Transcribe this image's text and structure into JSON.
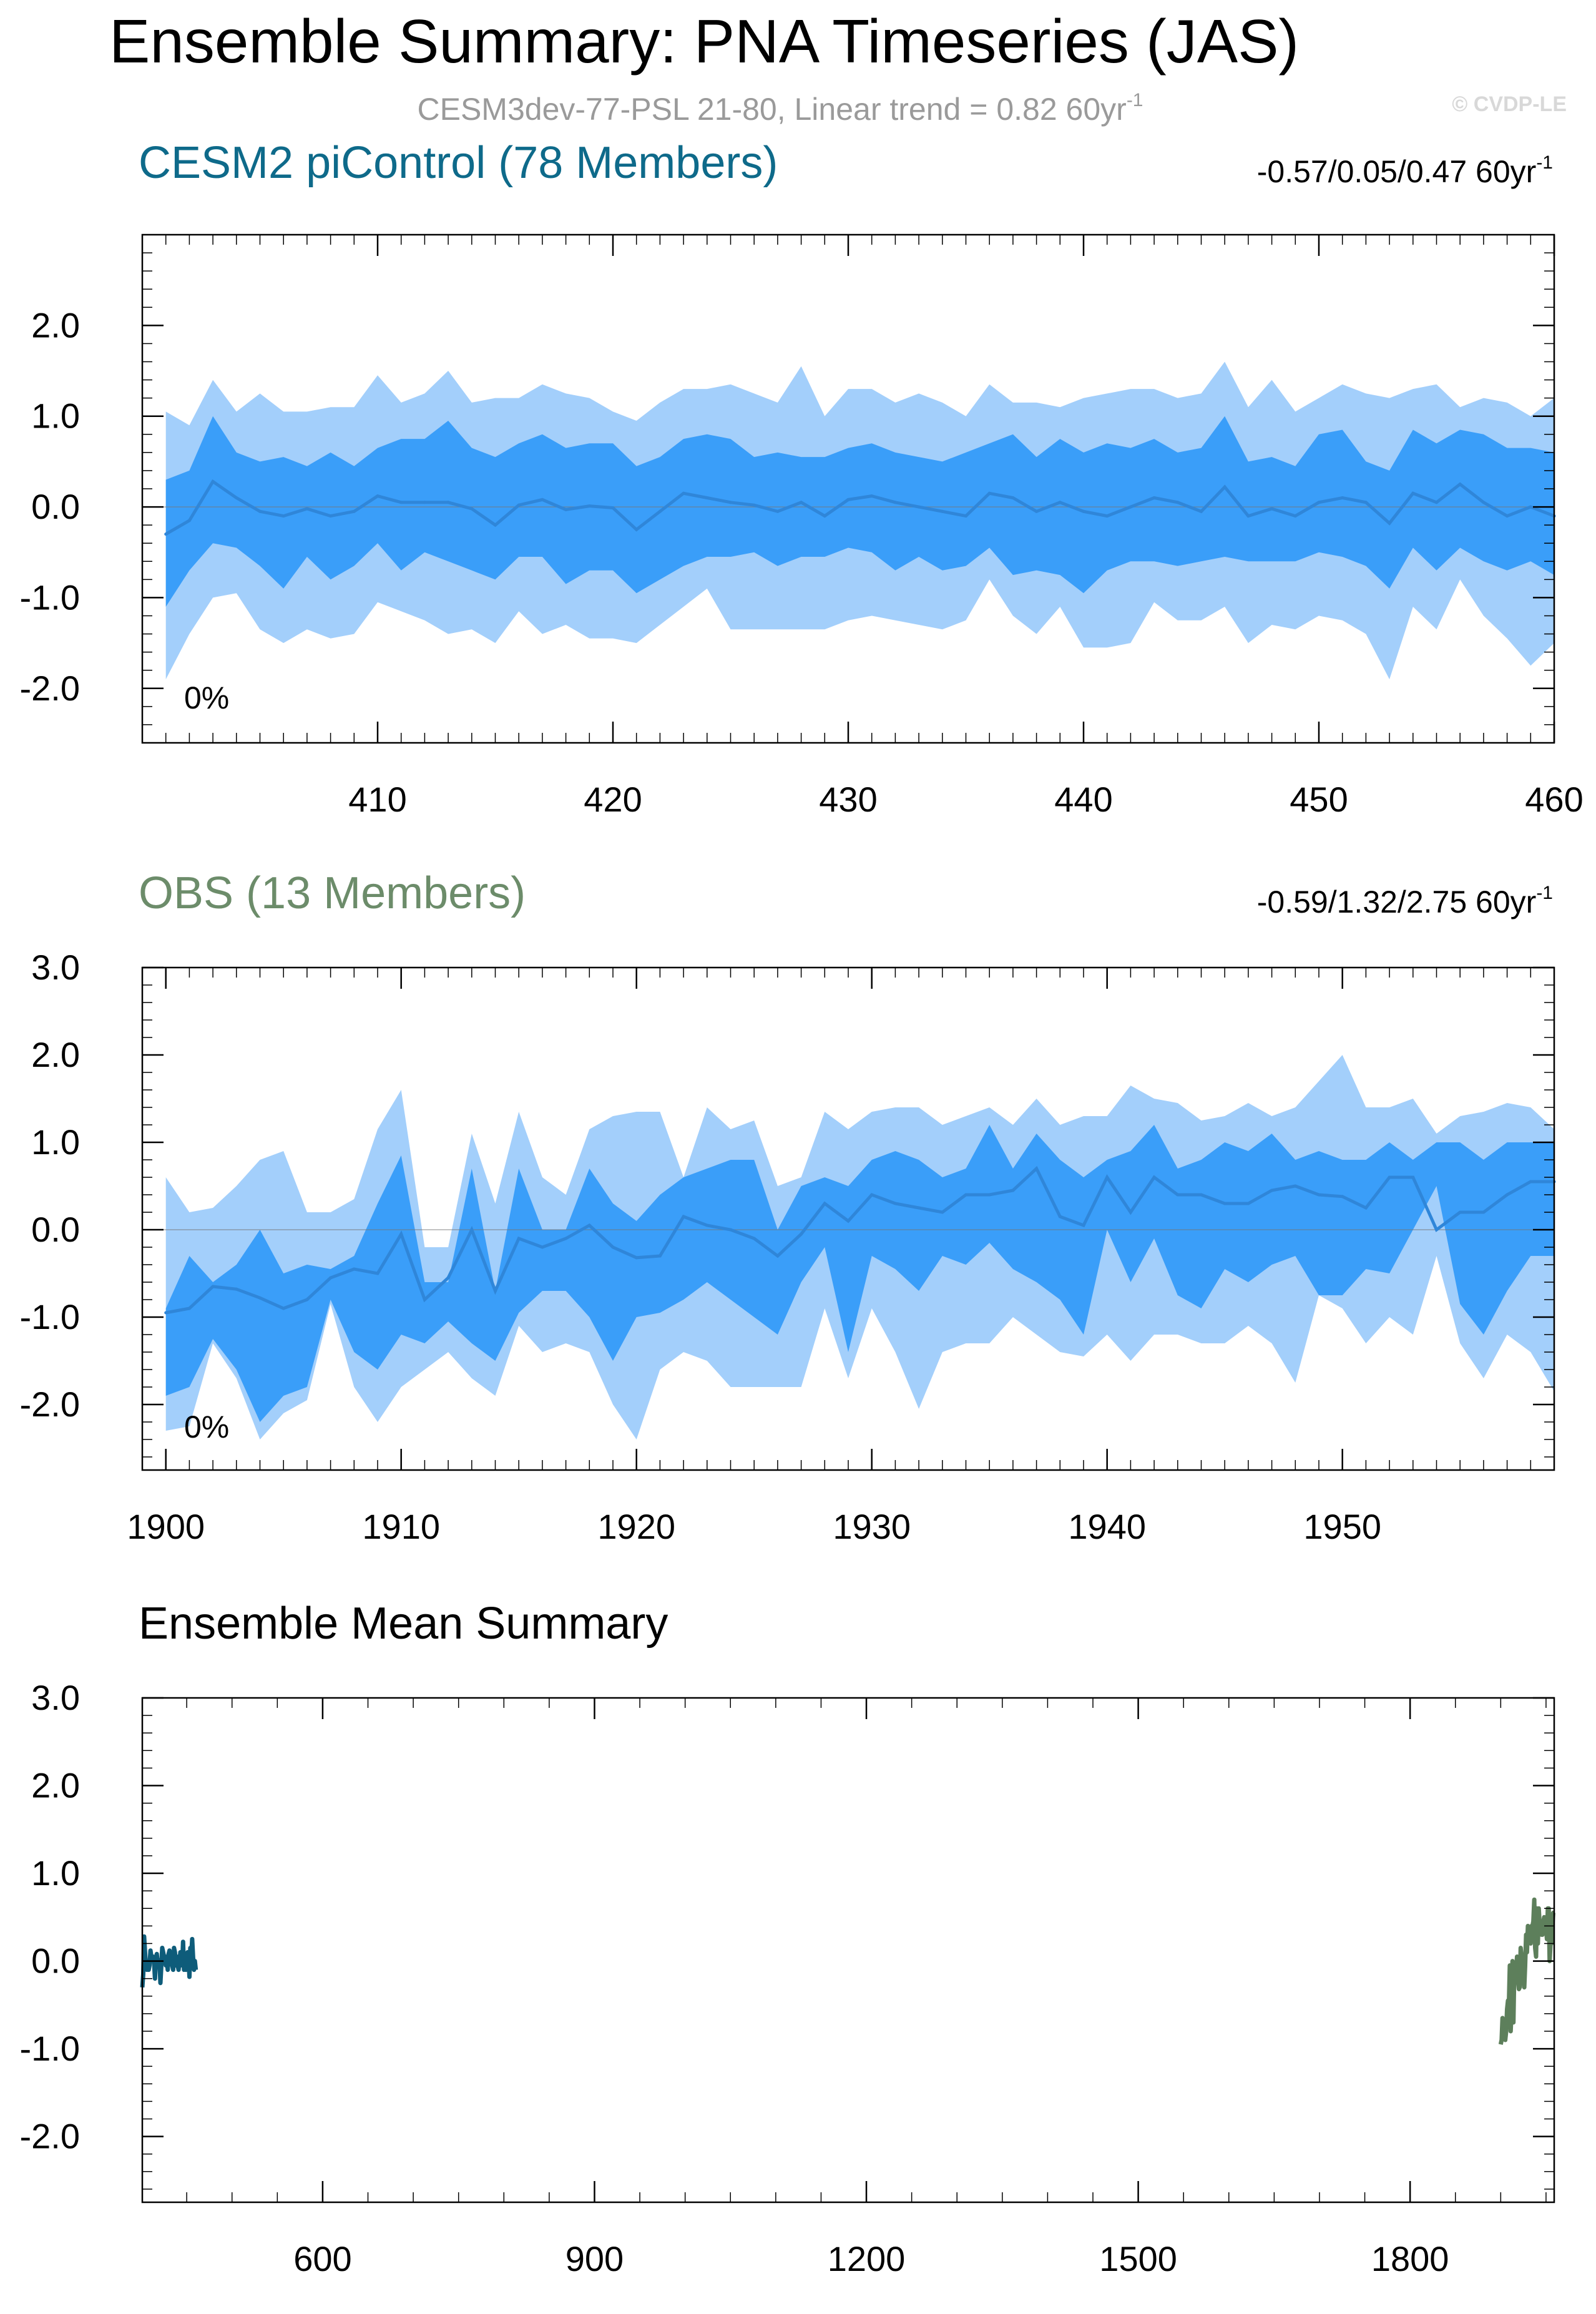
{
  "title": "Ensemble Summary: PNA Timeseries (JAS)",
  "subtitle": "CESM3dev-77-PSL 21-80, Linear trend = 0.82 60yr",
  "subtitle_sup": "-1",
  "watermark": "© CVDP-LE",
  "colors": {
    "outer_band": "#a3cffb",
    "inner_band": "#3a9ef9",
    "mean_line": "#2f86d9",
    "cesm_title": "#0e6a8a",
    "obs_title": "#6c8c6a",
    "cesm_line": "#0e5c7a",
    "obs_line": "#5d7f5b",
    "subtitle": "#9a9a9a",
    "watermark": "#d8d8d8"
  },
  "panels": [
    {
      "title": "CESM2 piControl (78 Members)",
      "trend_label": "-0.57/0.05/0.47 60yr",
      "trend_sup": "-1",
      "percent_label": "0%",
      "xticks": [
        "410",
        "420",
        "430",
        "440",
        "450",
        "460"
      ],
      "yticks": [
        "2.0",
        "1.0",
        "0.0",
        "-1.0",
        "-2.0"
      ]
    },
    {
      "title": "OBS (13 Members)",
      "trend_label": "-0.59/1.32/2.75 60yr",
      "trend_sup": "-1",
      "percent_label": "0%",
      "xticks": [
        "1900",
        "1910",
        "1920",
        "1930",
        "1940",
        "1950"
      ],
      "yticks": [
        "3.0",
        "2.0",
        "1.0",
        "0.0",
        "-1.0",
        "-2.0"
      ]
    },
    {
      "title": "Ensemble Mean Summary",
      "xticks": [
        "600",
        "900",
        "1200",
        "1500",
        "1800"
      ],
      "yticks": [
        "3.0",
        "2.0",
        "1.0",
        "0.0",
        "-1.0",
        "-2.0"
      ]
    }
  ],
  "chart_data": [
    {
      "type": "area",
      "title": "CESM2 piControl (78 Members)",
      "x_start": 401,
      "xlim": [
        400,
        460
      ],
      "ylim": [
        -2.6,
        3.0
      ],
      "grid": false,
      "series": [
        {
          "name": "min",
          "values": [
            -1.9,
            -1.4,
            -1.0,
            -0.95,
            -1.35,
            -1.5,
            -1.35,
            -1.45,
            -1.4,
            -1.05,
            -1.15,
            -1.25,
            -1.4,
            -1.35,
            -1.5,
            -1.15,
            -1.4,
            -1.3,
            -1.45,
            -1.45,
            -1.5,
            -1.3,
            -1.1,
            -0.9,
            -1.35,
            -1.35,
            -1.35,
            -1.35,
            -1.35,
            -1.25,
            -1.2,
            -1.25,
            -1.3,
            -1.35,
            -1.25,
            -0.8,
            -1.2,
            -1.4,
            -1.1,
            -1.55,
            -1.55,
            -1.5,
            -1.05,
            -1.25,
            -1.25,
            -1.1,
            -1.5,
            -1.3,
            -1.35,
            -1.2,
            -1.25,
            -1.4,
            -1.9,
            -1.1,
            -1.35,
            -0.8,
            -1.2,
            -1.45,
            -1.75,
            -1.5
          ]
        },
        {
          "name": "p10",
          "values": [
            -1.1,
            -0.7,
            -0.4,
            -0.45,
            -0.65,
            -0.9,
            -0.55,
            -0.8,
            -0.65,
            -0.4,
            -0.7,
            -0.5,
            -0.6,
            -0.7,
            -0.8,
            -0.55,
            -0.55,
            -0.85,
            -0.7,
            -0.7,
            -0.95,
            -0.8,
            -0.65,
            -0.55,
            -0.55,
            -0.5,
            -0.65,
            -0.55,
            -0.55,
            -0.45,
            -0.5,
            -0.7,
            -0.55,
            -0.7,
            -0.65,
            -0.45,
            -0.75,
            -0.7,
            -0.75,
            -0.95,
            -0.7,
            -0.6,
            -0.6,
            -0.65,
            -0.6,
            -0.55,
            -0.6,
            -0.6,
            -0.6,
            -0.5,
            -0.55,
            -0.65,
            -0.9,
            -0.45,
            -0.7,
            -0.45,
            -0.6,
            -0.7,
            -0.6,
            -0.75
          ]
        },
        {
          "name": "mean",
          "values": [
            -0.3,
            -0.15,
            0.28,
            0.1,
            -0.05,
            -0.1,
            -0.02,
            -0.1,
            -0.05,
            0.12,
            0.05,
            0.05,
            0.05,
            -0.02,
            -0.2,
            0.02,
            0.08,
            -0.03,
            0.01,
            -0.01,
            -0.25,
            -0.05,
            0.15,
            0.1,
            0.05,
            0.02,
            -0.05,
            0.05,
            -0.1,
            0.08,
            0.12,
            0.05,
            0.0,
            -0.05,
            -0.1,
            0.15,
            0.1,
            -0.05,
            0.05,
            -0.05,
            -0.1,
            0.0,
            0.1,
            0.05,
            -0.05,
            0.22,
            -0.1,
            -0.02,
            -0.1,
            0.05,
            0.1,
            0.05,
            -0.18,
            0.15,
            0.05,
            0.25,
            0.05,
            -0.1,
            0.0,
            -0.1
          ]
        },
        {
          "name": "p90",
          "values": [
            0.3,
            0.4,
            1.0,
            0.6,
            0.5,
            0.55,
            0.45,
            0.6,
            0.45,
            0.65,
            0.75,
            0.75,
            0.95,
            0.65,
            0.55,
            0.7,
            0.8,
            0.65,
            0.7,
            0.7,
            0.45,
            0.55,
            0.75,
            0.8,
            0.75,
            0.55,
            0.6,
            0.55,
            0.55,
            0.65,
            0.7,
            0.6,
            0.55,
            0.5,
            0.6,
            0.7,
            0.8,
            0.55,
            0.75,
            0.6,
            0.7,
            0.65,
            0.75,
            0.6,
            0.65,
            1.0,
            0.5,
            0.55,
            0.45,
            0.8,
            0.85,
            0.5,
            0.4,
            0.85,
            0.7,
            0.85,
            0.8,
            0.65,
            0.65,
            0.6
          ]
        },
        {
          "name": "max",
          "values": [
            1.05,
            0.9,
            1.4,
            1.05,
            1.25,
            1.05,
            1.05,
            1.1,
            1.1,
            1.45,
            1.15,
            1.25,
            1.5,
            1.15,
            1.2,
            1.2,
            1.35,
            1.25,
            1.2,
            1.05,
            0.95,
            1.15,
            1.3,
            1.3,
            1.35,
            1.25,
            1.15,
            1.55,
            1.0,
            1.3,
            1.3,
            1.15,
            1.25,
            1.15,
            1.0,
            1.35,
            1.15,
            1.15,
            1.1,
            1.2,
            1.25,
            1.3,
            1.3,
            1.2,
            1.25,
            1.6,
            1.1,
            1.4,
            1.05,
            1.2,
            1.35,
            1.25,
            1.2,
            1.3,
            1.35,
            1.1,
            1.2,
            1.15,
            1.0,
            1.2
          ]
        }
      ]
    },
    {
      "type": "area",
      "title": "OBS (13 Members)",
      "x_start": 1900,
      "xlim": [
        1899,
        1959
      ],
      "ylim": [
        -2.75,
        3.0
      ],
      "grid": false,
      "series": [
        {
          "name": "min",
          "values": [
            -2.3,
            -2.25,
            -1.3,
            -1.7,
            -2.4,
            -2.1,
            -1.95,
            -0.85,
            -1.8,
            -2.2,
            -1.8,
            -1.6,
            -1.4,
            -1.7,
            -1.9,
            -1.1,
            -1.4,
            -1.3,
            -1.4,
            -2.0,
            -2.4,
            -1.6,
            -1.4,
            -1.5,
            -1.8,
            -1.8,
            -1.8,
            -1.8,
            -0.9,
            -1.7,
            -0.9,
            -1.4,
            -2.05,
            -1.4,
            -1.3,
            -1.3,
            -1.0,
            -1.2,
            -1.4,
            -1.45,
            -1.2,
            -1.5,
            -1.2,
            -1.2,
            -1.3,
            -1.3,
            -1.1,
            -1.3,
            -1.75,
            -0.75,
            -0.9,
            -1.3,
            -1.0,
            -1.2,
            -0.3,
            -1.3,
            -1.7,
            -1.2,
            -1.4,
            -1.85
          ]
        },
        {
          "name": "p10",
          "values": [
            -1.9,
            -1.8,
            -1.25,
            -1.6,
            -2.2,
            -1.9,
            -1.8,
            -0.8,
            -1.4,
            -1.6,
            -1.2,
            -1.3,
            -1.05,
            -1.3,
            -1.5,
            -0.95,
            -0.7,
            -0.7,
            -1.0,
            -1.5,
            -1.0,
            -0.95,
            -0.8,
            -0.6,
            -0.8,
            -1.0,
            -1.2,
            -0.6,
            -0.2,
            -1.4,
            -0.3,
            -0.45,
            -0.7,
            -0.3,
            -0.4,
            -0.15,
            -0.45,
            -0.6,
            -0.8,
            -1.2,
            0.0,
            -0.6,
            -0.1,
            -0.75,
            -0.9,
            -0.45,
            -0.6,
            -0.4,
            -0.3,
            -0.75,
            -0.75,
            -0.45,
            -0.5,
            0.0,
            0.5,
            -0.85,
            -1.2,
            -0.7,
            -0.3,
            -0.3
          ]
        },
        {
          "name": "mean",
          "values": [
            -0.95,
            -0.9,
            -0.65,
            -0.68,
            -0.78,
            -0.9,
            -0.8,
            -0.55,
            -0.45,
            -0.5,
            -0.05,
            -0.8,
            -0.55,
            0.0,
            -0.7,
            -0.1,
            -0.2,
            -0.1,
            0.05,
            -0.2,
            -0.32,
            -0.3,
            0.15,
            0.05,
            0.0,
            -0.1,
            -0.3,
            -0.05,
            0.3,
            0.1,
            0.4,
            0.3,
            0.25,
            0.2,
            0.4,
            0.4,
            0.45,
            0.7,
            0.15,
            0.05,
            0.6,
            0.2,
            0.6,
            0.4,
            0.4,
            0.3,
            0.3,
            0.45,
            0.5,
            0.4,
            0.38,
            0.25,
            0.6,
            0.6,
            0.0,
            0.2,
            0.2,
            0.4,
            0.55,
            0.55
          ]
        },
        {
          "name": "p90",
          "values": [
            -0.9,
            -0.3,
            -0.6,
            -0.4,
            0.0,
            -0.5,
            -0.4,
            -0.45,
            -0.3,
            0.3,
            0.85,
            -0.6,
            -0.6,
            0.7,
            -0.7,
            0.7,
            0.0,
            0.0,
            0.7,
            0.3,
            0.1,
            0.4,
            0.6,
            0.7,
            0.8,
            0.8,
            0.0,
            0.5,
            0.6,
            0.5,
            0.8,
            0.9,
            0.8,
            0.6,
            0.7,
            1.2,
            0.7,
            1.1,
            0.8,
            0.6,
            0.8,
            0.9,
            1.2,
            0.7,
            0.8,
            1.0,
            0.9,
            1.1,
            0.8,
            0.9,
            0.8,
            0.8,
            1.0,
            0.8,
            1.0,
            1.0,
            0.8,
            1.0,
            1.0,
            1.0
          ]
        },
        {
          "name": "max",
          "values": [
            0.6,
            0.2,
            0.25,
            0.5,
            0.8,
            0.9,
            0.2,
            0.2,
            0.35,
            1.15,
            1.6,
            -0.2,
            -0.2,
            1.1,
            0.3,
            1.35,
            0.6,
            0.4,
            1.15,
            1.3,
            1.35,
            1.35,
            0.6,
            1.4,
            1.15,
            1.25,
            0.5,
            0.6,
            1.35,
            1.15,
            1.35,
            1.4,
            1.4,
            1.2,
            1.3,
            1.4,
            1.2,
            1.5,
            1.2,
            1.3,
            1.3,
            1.65,
            1.5,
            1.45,
            1.25,
            1.3,
            1.45,
            1.3,
            1.4,
            1.7,
            2.0,
            1.4,
            1.4,
            1.5,
            1.1,
            1.3,
            1.35,
            1.45,
            1.4,
            1.15
          ]
        }
      ]
    },
    {
      "type": "line",
      "title": "Ensemble Mean Summary",
      "xlim": [
        401,
        1959
      ],
      "ylim": [
        -2.75,
        3.0
      ],
      "grid": false,
      "series": [
        {
          "x_start": 401,
          "color_key": "cesm_line",
          "values": [
            -0.3,
            -0.15,
            0.28,
            0.1,
            -0.05,
            -0.1,
            -0.02,
            -0.1,
            -0.05,
            0.12,
            0.05,
            0.05,
            0.05,
            -0.02,
            -0.2,
            0.02,
            0.08,
            -0.03,
            0.01,
            -0.01,
            -0.25,
            -0.05,
            0.15,
            0.1,
            0.05,
            0.02,
            -0.05,
            0.05,
            -0.1,
            0.08,
            0.12,
            0.05,
            0.0,
            -0.05,
            -0.1,
            0.15,
            0.1,
            -0.05,
            0.05,
            -0.05,
            -0.1,
            0.0,
            0.1,
            0.05,
            -0.05,
            0.22,
            -0.1,
            -0.02,
            -0.1,
            0.05,
            0.1,
            0.05,
            -0.18,
            0.15,
            0.05,
            0.25,
            0.05,
            -0.1,
            0.0,
            -0.1
          ]
        },
        {
          "x_start": 1900,
          "color_key": "obs_line",
          "values": [
            -0.95,
            -0.9,
            -0.65,
            -0.68,
            -0.78,
            -0.9,
            -0.8,
            -0.55,
            -0.45,
            -0.5,
            -0.05,
            -0.8,
            -0.55,
            0.0,
            -0.7,
            -0.1,
            -0.2,
            -0.1,
            0.05,
            -0.2,
            -0.32,
            -0.3,
            0.15,
            0.05,
            0.0,
            -0.1,
            -0.3,
            -0.05,
            0.3,
            0.1,
            0.4,
            0.3,
            0.25,
            0.2,
            0.4,
            0.4,
            0.45,
            0.7,
            0.15,
            0.05,
            0.6,
            0.2,
            0.6,
            0.4,
            0.4,
            0.3,
            0.3,
            0.45,
            0.5,
            0.4,
            0.38,
            0.25,
            0.6,
            0.6,
            0.0,
            0.2,
            0.2,
            0.4,
            0.55,
            0.55
          ]
        }
      ]
    }
  ]
}
